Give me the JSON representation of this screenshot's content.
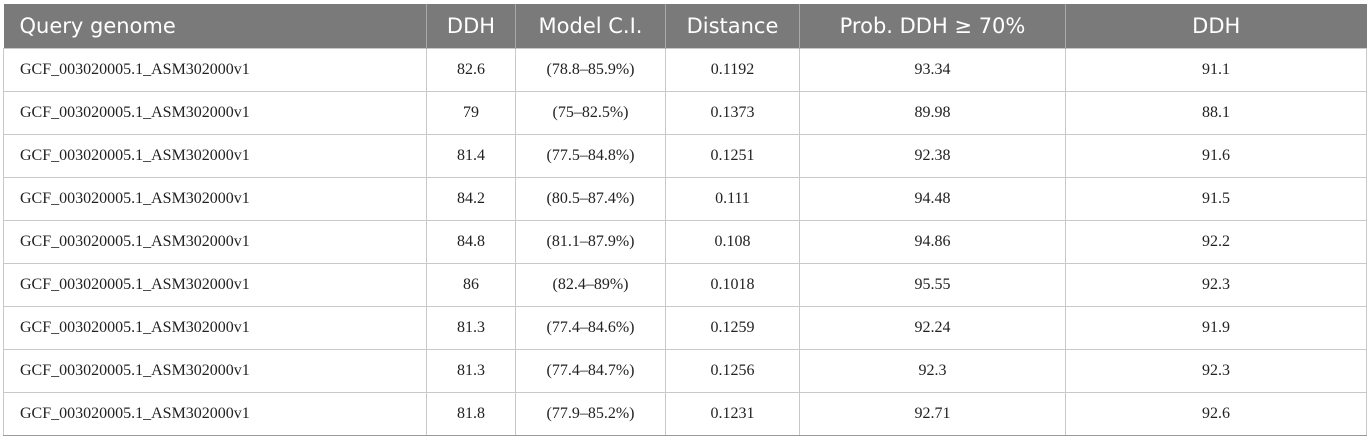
{
  "table": {
    "headers": [
      "Query genome",
      "DDH",
      "Model C.I.",
      "Distance",
      "Prob. DDH ≥ 70%",
      "DDH"
    ],
    "rows": [
      [
        "GCF_003020005.1_ASM302000v1",
        "82.6",
        "(78.8–85.9%)",
        "0.1192",
        "93.34",
        "91.1"
      ],
      [
        "GCF_003020005.1_ASM302000v1",
        "79",
        "(75–82.5%)",
        "0.1373",
        "89.98",
        "88.1"
      ],
      [
        "GCF_003020005.1_ASM302000v1",
        "81.4",
        "(77.5–84.8%)",
        "0.1251",
        "92.38",
        "91.6"
      ],
      [
        "GCF_003020005.1_ASM302000v1",
        "84.2",
        "(80.5–87.4%)",
        "0.111",
        "94.48",
        "91.5"
      ],
      [
        "GCF_003020005.1_ASM302000v1",
        "84.8",
        "(81.1–87.9%)",
        "0.108",
        "94.86",
        "92.2"
      ],
      [
        "GCF_003020005.1_ASM302000v1",
        "86",
        "(82.4–89%)",
        "0.1018",
        "95.55",
        "92.3"
      ],
      [
        "GCF_003020005.1_ASM302000v1",
        "81.3",
        "(77.4–84.6%)",
        "0.1259",
        "92.24",
        "91.9"
      ],
      [
        "GCF_003020005.1_ASM302000v1",
        "81.3",
        "(77.4–84.7%)",
        "0.1256",
        "92.3",
        "92.3"
      ],
      [
        "GCF_003020005.1_ASM302000v1",
        "81.8",
        "(77.9–85.2%)",
        "0.1231",
        "92.71",
        "92.6"
      ]
    ]
  }
}
